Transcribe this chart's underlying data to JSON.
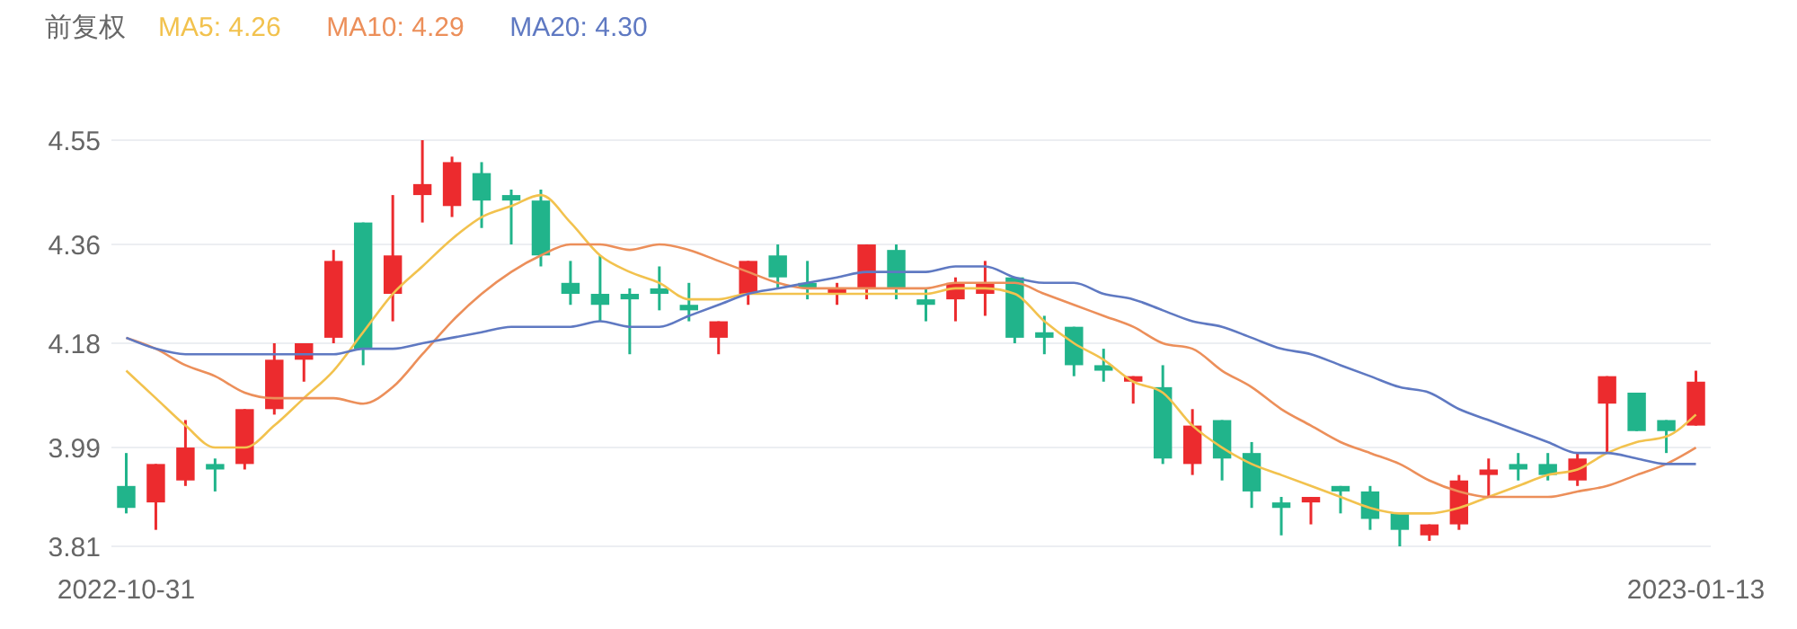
{
  "chart_data": {
    "type": "candlestick",
    "legend_title": "前复权",
    "legend": "top left",
    "grid": "y",
    "marker": "none",
    "line_style": "solid",
    "categories": [
      "2022-10-31",
      null,
      null,
      null,
      null,
      null,
      null,
      null,
      null,
      null,
      null,
      null,
      null,
      null,
      null,
      null,
      null,
      null,
      null,
      null,
      null,
      null,
      null,
      null,
      null,
      null,
      null,
      null,
      null,
      null,
      null,
      null,
      null,
      null,
      null,
      null,
      null,
      null,
      null,
      null,
      null,
      null,
      null,
      null,
      null,
      null,
      null,
      null,
      null,
      null,
      null,
      null,
      null,
      "2023-01-13"
    ],
    "ylim": [
      3.81,
      4.55
    ],
    "yticks": [
      4.55,
      4.36,
      4.18,
      3.99,
      3.81
    ],
    "ohlc": [
      [
        3.92,
        3.98,
        3.87,
        3.88
      ],
      [
        3.89,
        3.96,
        3.84,
        3.96
      ],
      [
        3.93,
        4.04,
        3.92,
        3.99
      ],
      [
        3.96,
        3.97,
        3.91,
        3.95
      ],
      [
        3.96,
        4.06,
        3.95,
        4.06
      ],
      [
        4.06,
        4.18,
        4.05,
        4.15
      ],
      [
        4.15,
        4.18,
        4.11,
        4.18
      ],
      [
        4.19,
        4.35,
        4.18,
        4.33
      ],
      [
        4.4,
        4.4,
        4.14,
        4.17
      ],
      [
        4.27,
        4.45,
        4.22,
        4.34
      ],
      [
        4.45,
        4.55,
        4.4,
        4.47
      ],
      [
        4.43,
        4.52,
        4.41,
        4.51
      ],
      [
        4.49,
        4.51,
        4.39,
        4.44
      ],
      [
        4.45,
        4.46,
        4.36,
        4.44
      ],
      [
        4.44,
        4.46,
        4.32,
        4.34
      ],
      [
        4.29,
        4.33,
        4.25,
        4.27
      ],
      [
        4.27,
        4.34,
        4.22,
        4.25
      ],
      [
        4.27,
        4.28,
        4.16,
        4.26
      ],
      [
        4.28,
        4.32,
        4.24,
        4.27
      ],
      [
        4.25,
        4.29,
        4.22,
        4.24
      ],
      [
        4.19,
        4.22,
        4.16,
        4.22
      ],
      [
        4.27,
        4.33,
        4.25,
        4.33
      ],
      [
        4.34,
        4.36,
        4.28,
        4.3
      ],
      [
        4.29,
        4.33,
        4.26,
        4.28
      ],
      [
        4.27,
        4.29,
        4.25,
        4.28
      ],
      [
        4.28,
        4.36,
        4.26,
        4.36
      ],
      [
        4.35,
        4.36,
        4.26,
        4.28
      ],
      [
        4.26,
        4.28,
        4.22,
        4.25
      ],
      [
        4.26,
        4.3,
        4.22,
        4.29
      ],
      [
        4.27,
        4.33,
        4.23,
        4.29
      ],
      [
        4.3,
        4.3,
        4.18,
        4.19
      ],
      [
        4.2,
        4.23,
        4.16,
        4.19
      ],
      [
        4.21,
        4.21,
        4.12,
        4.14
      ],
      [
        4.14,
        4.17,
        4.11,
        4.13
      ],
      [
        4.11,
        4.12,
        4.07,
        4.12
      ],
      [
        4.1,
        4.14,
        3.96,
        3.97
      ],
      [
        3.96,
        4.06,
        3.94,
        4.03
      ],
      [
        4.04,
        4.04,
        3.93,
        3.97
      ],
      [
        3.98,
        4.0,
        3.88,
        3.91
      ],
      [
        3.89,
        3.9,
        3.83,
        3.88
      ],
      [
        3.89,
        3.9,
        3.85,
        3.9
      ],
      [
        3.92,
        3.92,
        3.87,
        3.91
      ],
      [
        3.91,
        3.92,
        3.84,
        3.86
      ],
      [
        3.87,
        3.87,
        3.81,
        3.84
      ],
      [
        3.83,
        3.85,
        3.82,
        3.85
      ],
      [
        3.85,
        3.94,
        3.84,
        3.93
      ],
      [
        3.94,
        3.97,
        3.9,
        3.95
      ],
      [
        3.96,
        3.98,
        3.93,
        3.95
      ],
      [
        3.96,
        3.98,
        3.93,
        3.94
      ],
      [
        3.93,
        3.98,
        3.92,
        3.97
      ],
      [
        4.07,
        4.12,
        3.98,
        4.12
      ],
      [
        4.09,
        4.09,
        4.02,
        4.02
      ],
      [
        4.04,
        4.04,
        3.98,
        4.02
      ],
      [
        4.03,
        4.13,
        4.03,
        4.11
      ]
    ],
    "colors": [
      "#21b48b",
      "#ec2b2e",
      "#ec2b2e",
      "#21b48b",
      "#ec2b2e",
      "#ec2b2e",
      "#ec2b2e",
      "#ec2b2e",
      "#21b48b",
      "#ec2b2e",
      "#ec2b2e",
      "#ec2b2e",
      "#21b48b",
      "#21b48b",
      "#21b48b",
      "#21b48b",
      "#21b48b",
      "#21b48b",
      "#21b48b",
      "#21b48b",
      "#ec2b2e",
      "#ec2b2e",
      "#21b48b",
      "#21b48b",
      "#ec2b2e",
      "#ec2b2e",
      "#21b48b",
      "#21b48b",
      "#ec2b2e",
      "#ec2b2e",
      "#21b48b",
      "#21b48b",
      "#21b48b",
      "#21b48b",
      "#ec2b2e",
      "#21b48b",
      "#ec2b2e",
      "#21b48b",
      "#21b48b",
      "#21b48b",
      "#ec2b2e",
      "#21b48b",
      "#21b48b",
      "#21b48b",
      "#ec2b2e",
      "#ec2b2e",
      "#ec2b2e",
      "#21b48b",
      "#21b48b",
      "#ec2b2e",
      "#ec2b2e",
      "#21b48b",
      "#21b48b",
      "#ec2b2e"
    ],
    "series": [
      {
        "type": "line",
        "name": "MA5: 4.26",
        "color": "#f2c24e",
        "values": [
          4.13,
          4.08,
          4.03,
          3.99,
          3.99,
          4.03,
          4.08,
          4.13,
          4.2,
          4.27,
          4.32,
          4.37,
          4.41,
          4.43,
          4.45,
          4.4,
          4.34,
          4.31,
          4.29,
          4.26,
          4.26,
          4.27,
          4.27,
          4.27,
          4.27,
          4.27,
          4.27,
          4.27,
          4.28,
          4.28,
          4.27,
          4.22,
          4.18,
          4.15,
          4.11,
          4.09,
          4.03,
          3.99,
          3.96,
          3.94,
          3.92,
          3.9,
          3.88,
          3.87,
          3.87,
          3.88,
          3.9,
          3.92,
          3.94,
          3.95,
          3.98,
          4.0,
          4.01,
          4.05
        ]
      },
      {
        "type": "line",
        "name": "MA10: 4.29",
        "color": "#ec8f5a",
        "values": [
          4.19,
          4.17,
          4.14,
          4.12,
          4.09,
          4.08,
          4.08,
          4.08,
          4.07,
          4.1,
          4.16,
          4.22,
          4.27,
          4.31,
          4.34,
          4.36,
          4.36,
          4.35,
          4.36,
          4.35,
          4.33,
          4.31,
          4.29,
          4.28,
          4.28,
          4.28,
          4.28,
          4.28,
          4.29,
          4.29,
          4.29,
          4.27,
          4.25,
          4.23,
          4.21,
          4.18,
          4.17,
          4.13,
          4.1,
          4.06,
          4.03,
          4.0,
          3.98,
          3.96,
          3.93,
          3.91,
          3.9,
          3.9,
          3.9,
          3.91,
          3.92,
          3.94,
          3.96,
          3.99
        ]
      },
      {
        "type": "line",
        "name": "MA20: 4.30",
        "color": "#5f79c2",
        "values": [
          4.19,
          4.17,
          4.16,
          4.16,
          4.16,
          4.16,
          4.16,
          4.16,
          4.17,
          4.17,
          4.18,
          4.19,
          4.2,
          4.21,
          4.21,
          4.21,
          4.22,
          4.21,
          4.21,
          4.23,
          4.25,
          4.27,
          4.28,
          4.29,
          4.3,
          4.31,
          4.31,
          4.31,
          4.32,
          4.32,
          4.3,
          4.29,
          4.29,
          4.27,
          4.26,
          4.24,
          4.22,
          4.21,
          4.19,
          4.17,
          4.16,
          4.14,
          4.12,
          4.1,
          4.09,
          4.06,
          4.04,
          4.02,
          4.0,
          3.98,
          3.98,
          3.97,
          3.96,
          3.96
        ]
      }
    ]
  }
}
